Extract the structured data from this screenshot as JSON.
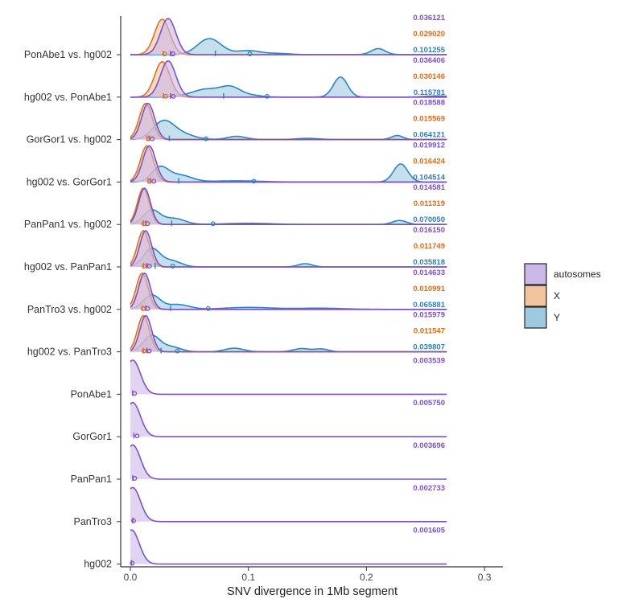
{
  "chart_data": {
    "type": "ridgeline",
    "xlabel": "SNV divergence in 1Mb segment",
    "xlim": [
      -0.008,
      0.315
    ],
    "xticks": [
      "0.0",
      "0.1",
      "0.2",
      "0.3"
    ],
    "xtick_values": [
      0,
      0.1,
      0.2,
      0.3
    ],
    "grid": false,
    "legend": {
      "placement": "right",
      "entries": [
        {
          "name": "autosomes",
          "fill": "#cbb8e8",
          "stroke": "#7b52c9"
        },
        {
          "name": "X",
          "fill": "#f2c49c",
          "stroke": "#e0701e"
        },
        {
          "name": "Y",
          "fill": "#9ecae1",
          "stroke": "#2b86bf"
        }
      ]
    },
    "markers": {
      "median": "|",
      "mean": "o"
    },
    "rows": [
      {
        "label": "PonAbe1 vs. hg002",
        "series": [
          {
            "name": "autosomes",
            "mean": 0.036121,
            "mean_label": "0.036121",
            "median": 0.034,
            "peaks": [
              [
                0.032,
                0.9,
                0.0065
              ]
            ]
          },
          {
            "name": "X",
            "mean": 0.02902,
            "mean_label": "0.029020",
            "median": 0.028,
            "peaks": [
              [
                0.027,
                0.88,
                0.0065
              ]
            ]
          },
          {
            "name": "Y",
            "mean": 0.101255,
            "mean_label": "0.101255",
            "median": 0.072,
            "peaks": [
              [
                0.067,
                0.4,
                0.01
              ],
              [
                0.1,
                0.1,
                0.01
              ],
              [
                0.125,
                0.03,
                0.01
              ],
              [
                0.21,
                0.15,
                0.006
              ]
            ]
          }
        ]
      },
      {
        "label": "hg002 vs. PonAbe1",
        "series": [
          {
            "name": "autosomes",
            "mean": 0.036406,
            "mean_label": "0.036406",
            "median": 0.034,
            "peaks": [
              [
                0.032,
                0.9,
                0.0065
              ]
            ]
          },
          {
            "name": "X",
            "mean": 0.030146,
            "mean_label": "0.030146",
            "median": 0.028,
            "peaks": [
              [
                0.027,
                0.88,
                0.0065
              ]
            ]
          },
          {
            "name": "Y",
            "mean": 0.115781,
            "mean_label": "0.115781",
            "median": 0.079,
            "peaks": [
              [
                0.065,
                0.2,
                0.013
              ],
              [
                0.085,
                0.2,
                0.008
              ],
              [
                0.1,
                0.05,
                0.01
              ],
              [
                0.178,
                0.5,
                0.006
              ],
              [
                0.26,
                0.03,
                0.01
              ]
            ]
          }
        ]
      },
      {
        "label": "GorGor1 vs. hg002",
        "series": [
          {
            "name": "autosomes",
            "mean": 0.018588,
            "mean_label": "0.018588",
            "median": 0.016,
            "peaks": [
              [
                0.015,
                0.9,
                0.0055
              ]
            ]
          },
          {
            "name": "X",
            "mean": 0.015569,
            "mean_label": "0.015569",
            "median": 0.014,
            "peaks": [
              [
                0.013,
                0.9,
                0.0055
              ]
            ]
          },
          {
            "name": "Y",
            "mean": 0.064121,
            "mean_label": "0.064121",
            "median": 0.033,
            "peaks": [
              [
                0.028,
                0.45,
                0.009
              ],
              [
                0.045,
                0.12,
                0.01
              ],
              [
                0.09,
                0.08,
                0.008
              ],
              [
                0.15,
                0.03,
                0.01
              ],
              [
                0.226,
                0.1,
                0.005
              ]
            ]
          }
        ]
      },
      {
        "label": "hg002 vs. GorGor1",
        "series": [
          {
            "name": "autosomes",
            "mean": 0.019912,
            "mean_label": "0.019912",
            "median": 0.017,
            "peaks": [
              [
                0.016,
                0.9,
                0.0055
              ]
            ]
          },
          {
            "name": "X",
            "mean": 0.016424,
            "mean_label": "0.016424",
            "median": 0.015,
            "peaks": [
              [
                0.014,
                0.9,
                0.0055
              ]
            ]
          },
          {
            "name": "Y",
            "mean": 0.104514,
            "mean_label": "0.104514",
            "median": 0.041,
            "peaks": [
              [
                0.025,
                0.35,
                0.007
              ],
              [
                0.042,
                0.17,
                0.01
              ],
              [
                0.09,
                0.03,
                0.02
              ],
              [
                0.229,
                0.45,
                0.006
              ]
            ]
          }
        ]
      },
      {
        "label": "PanPan1 vs. hg002",
        "series": [
          {
            "name": "autosomes",
            "mean": 0.014581,
            "mean_label": "0.014581",
            "median": 0.013,
            "peaks": [
              [
                0.012,
                0.9,
                0.005
              ]
            ]
          },
          {
            "name": "X",
            "mean": 0.011319,
            "mean_label": "0.011319",
            "median": 0.011,
            "peaks": [
              [
                0.011,
                0.9,
                0.005
              ]
            ]
          },
          {
            "name": "Y",
            "mean": 0.07005,
            "mean_label": "0.070050",
            "median": 0.035,
            "peaks": [
              [
                0.018,
                0.35,
                0.007
              ],
              [
                0.037,
                0.15,
                0.009
              ],
              [
                0.1,
                0.03,
                0.02
              ],
              [
                0.228,
                0.1,
                0.006
              ]
            ]
          }
        ]
      },
      {
        "label": "hg002 vs. PanPan1",
        "series": [
          {
            "name": "autosomes",
            "mean": 0.01615,
            "mean_label": "0.016150",
            "median": 0.014,
            "peaks": [
              [
                0.013,
                0.9,
                0.005
              ]
            ]
          },
          {
            "name": "X",
            "mean": 0.011749,
            "mean_label": "0.011749",
            "median": 0.011,
            "peaks": [
              [
                0.011,
                0.9,
                0.005
              ]
            ]
          },
          {
            "name": "Y",
            "mean": 0.035818,
            "mean_label": "0.035818",
            "median": 0.021,
            "peaks": [
              [
                0.018,
                0.45,
                0.007
              ],
              [
                0.035,
                0.15,
                0.008
              ],
              [
                0.148,
                0.08,
                0.006
              ]
            ]
          }
        ]
      },
      {
        "label": "PanTro3 vs. hg002",
        "series": [
          {
            "name": "autosomes",
            "mean": 0.014633,
            "mean_label": "0.014633",
            "median": 0.013,
            "peaks": [
              [
                0.012,
                0.9,
                0.005
              ]
            ]
          },
          {
            "name": "X",
            "mean": 0.010991,
            "mean_label": "0.010991",
            "median": 0.01,
            "peaks": [
              [
                0.01,
                0.9,
                0.005
              ]
            ]
          },
          {
            "name": "Y",
            "mean": 0.065881,
            "mean_label": "0.065881",
            "median": 0.034,
            "peaks": [
              [
                0.018,
                0.35,
                0.007
              ],
              [
                0.04,
                0.12,
                0.01
              ],
              [
                0.1,
                0.05,
                0.02
              ],
              [
                0.16,
                0.03,
                0.02
              ]
            ]
          }
        ]
      },
      {
        "label": "hg002 vs. PanTro3",
        "series": [
          {
            "name": "autosomes",
            "mean": 0.015979,
            "mean_label": "0.015979",
            "median": 0.014,
            "peaks": [
              [
                0.013,
                0.9,
                0.005
              ]
            ]
          },
          {
            "name": "X",
            "mean": 0.011547,
            "mean_label": "0.011547",
            "median": 0.011,
            "peaks": [
              [
                0.011,
                0.9,
                0.005
              ]
            ]
          },
          {
            "name": "Y",
            "mean": 0.039807,
            "mean_label": "0.039807",
            "median": 0.026,
            "peaks": [
              [
                0.018,
                0.4,
                0.007
              ],
              [
                0.035,
                0.12,
                0.008
              ],
              [
                0.088,
                0.09,
                0.008
              ],
              [
                0.145,
                0.08,
                0.007
              ],
              [
                0.162,
                0.07,
                0.006
              ]
            ]
          }
        ]
      },
      {
        "label": "PonAbe1",
        "series": [
          {
            "name": "autosomes",
            "mean": 0.003539,
            "mean_label": "0.003539",
            "median": 0.002,
            "peaks": [
              [
                0.002,
                0.85,
                0.0065
              ]
            ]
          }
        ]
      },
      {
        "label": "GorGor1",
        "series": [
          {
            "name": "autosomes",
            "mean": 0.00575,
            "mean_label": "0.005750",
            "median": 0.003,
            "peaks": [
              [
                0.002,
                0.85,
                0.0065
              ]
            ]
          }
        ]
      },
      {
        "label": "PanPan1",
        "series": [
          {
            "name": "autosomes",
            "mean": 0.003696,
            "mean_label": "0.003696",
            "median": 0.002,
            "peaks": [
              [
                0.002,
                0.85,
                0.0065
              ]
            ]
          }
        ]
      },
      {
        "label": "PanTro3",
        "series": [
          {
            "name": "autosomes",
            "mean": 0.002733,
            "mean_label": "0.002733",
            "median": 0.002,
            "peaks": [
              [
                0.002,
                0.85,
                0.0065
              ]
            ]
          }
        ]
      },
      {
        "label": "hg002",
        "series": [
          {
            "name": "autosomes",
            "mean": 0.001605,
            "mean_label": "0.001605",
            "median": 0.001,
            "peaks": [
              [
                0.001,
                0.85,
                0.0065
              ]
            ]
          }
        ]
      }
    ]
  }
}
